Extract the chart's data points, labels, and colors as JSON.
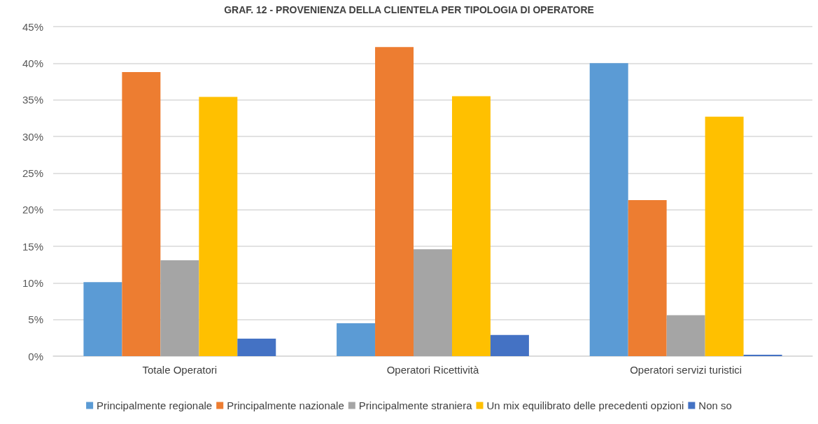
{
  "chart_data": {
    "type": "bar",
    "title": "GRAF. 12 - PROVENIENZA DELLA CLIENTELA PER TIPOLOGIA DI OPERATORE",
    "categories": [
      "Totale Operatori",
      "Operatori Ricettività",
      "Operatori servizi turistici"
    ],
    "series": [
      {
        "name": "Principalmente regionale",
        "color": "#5b9bd5",
        "values": [
          10.1,
          4.5,
          40.0
        ]
      },
      {
        "name": "Principalmente nazionale",
        "color": "#ed7d31",
        "values": [
          38.8,
          42.2,
          21.3
        ]
      },
      {
        "name": "Principalmente straniera",
        "color": "#a5a5a5",
        "values": [
          13.1,
          14.6,
          5.6
        ]
      },
      {
        "name": "Un mix equilibrato delle precedenti opzioni",
        "color": "#ffc000",
        "values": [
          35.4,
          35.5,
          32.7
        ]
      },
      {
        "name": "Non so",
        "color": "#4472c4",
        "values": [
          2.4,
          2.9,
          0.2
        ]
      }
    ],
    "ylim": [
      0,
      45
    ],
    "yticks": [
      {
        "value": 0,
        "label": "0%"
      },
      {
        "value": 5,
        "label": "5%"
      },
      {
        "value": 10,
        "label": "10%"
      },
      {
        "value": 15,
        "label": "15%"
      },
      {
        "value": 20,
        "label": "20%"
      },
      {
        "value": 25,
        "label": "25%"
      },
      {
        "value": 30,
        "label": "30%"
      },
      {
        "value": 35,
        "label": "35%"
      },
      {
        "value": 40,
        "label": "40%"
      },
      {
        "value": 45,
        "label": "45%"
      }
    ],
    "grid": "y",
    "legend": "bottom"
  }
}
